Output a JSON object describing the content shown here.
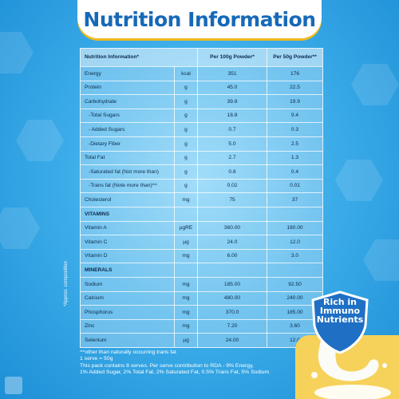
{
  "title": "Nutrition Information",
  "table": {
    "header": {
      "nutrient": "Nutrition Information*",
      "per100": "Per 100g Powder*",
      "per50": "Per 50g Powder**"
    },
    "rows": [
      {
        "name": "Energy",
        "unit": "kcal",
        "per100": "351",
        "per50": "176"
      },
      {
        "name": "Protein",
        "unit": "g",
        "per100": "45.0",
        "per50": "22.5"
      },
      {
        "name": "Carbohydrate",
        "unit": "g",
        "per100": "39.8",
        "per50": "19.9"
      },
      {
        "name": "-Total Sugars",
        "unit": "g",
        "per100": "18.8",
        "per50": "9.4"
      },
      {
        "name": "- Added Sugars",
        "unit": "g",
        "per100": "0.7",
        "per50": "0.3"
      },
      {
        "name": "-Dietary Fiber",
        "unit": "g",
        "per100": "5.0",
        "per50": "2.5"
      },
      {
        "name": "Total Fat",
        "unit": "g",
        "per100": "2.7",
        "per50": "1.3"
      },
      {
        "name": "-Saturated fat (Not more than)",
        "unit": "g",
        "per100": "0.8",
        "per50": "0.4"
      },
      {
        "name": "-Trans fat (Note more than)^^",
        "unit": "g",
        "per100": "0.02",
        "per50": "0.01"
      },
      {
        "name": "Cholesterol",
        "unit": "mg",
        "per100": "75",
        "per50": "37"
      },
      {
        "name": "VITAMINS",
        "unit": "",
        "per100": "",
        "per50": ""
      },
      {
        "name": "Vitamin A",
        "unit": "µgRE",
        "per100": "360.00",
        "per50": "180.00"
      },
      {
        "name": "Vitamin C",
        "unit": "µg",
        "per100": "24.0",
        "per50": "12.0"
      },
      {
        "name": "Vitamin D",
        "unit": "mg",
        "per100": "6.00",
        "per50": "3.0"
      },
      {
        "name": "MINERALS",
        "unit": "",
        "per100": "",
        "per50": ""
      },
      {
        "name": "Sodium",
        "unit": "mg",
        "per100": "185.00",
        "per50": "92.50"
      },
      {
        "name": "Calcium",
        "unit": "mg",
        "per100": "480.00",
        "per50": "240.00"
      },
      {
        "name": "Phosphorus",
        "unit": "mg",
        "per100": "370.0",
        "per50": "185.00"
      },
      {
        "name": "Zinc",
        "unit": "mg",
        "per100": "7.20",
        "per50": "3.60"
      },
      {
        "name": "Selenium",
        "unit": "µg",
        "per100": "24.00",
        "per50": "12.0"
      }
    ]
  },
  "side_note": "*Approx. composition",
  "footnotes": [
    "^^other than naturally occurring trans fat",
    "1 serve = 50g",
    "This pack contains 8 serves. Per serve contribution to RDA - 9% Energy,",
    "1% Added Sugar, 2% Total Fat, 2% Saturated Fat, 0.5% Trans Fat, 5% Sodium"
  ],
  "badge": {
    "line1": "Rich in",
    "line2": "Immuno",
    "line3": "Nutrients",
    "icon": "shield-icon"
  },
  "colors": {
    "title": "#1669b8",
    "banner_accent": "#f0b81e",
    "background": "#2a9fe0",
    "badge": "#1f6fc4"
  }
}
